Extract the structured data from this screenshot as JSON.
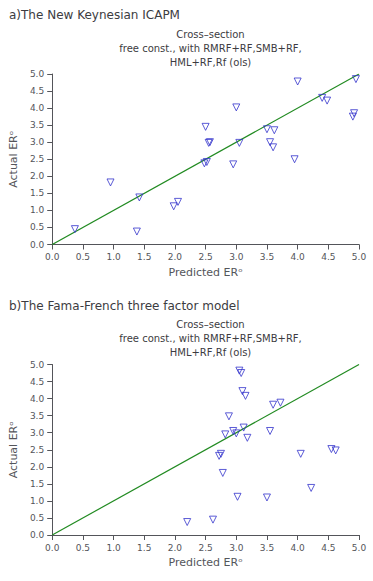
{
  "chart_data": [
    {
      "type": "scatter",
      "annotations": [
        "a)The New Keynesian ICAPM"
      ],
      "title": "Cross–section\nfree const., with RMRF+RF,SMB+RF,\nHML+RF,Rf (ols)",
      "xlabel": "Predicted ERᵒ",
      "ylabel": "Actual ERᵒ",
      "xlim": [
        0,
        5
      ],
      "ylim": [
        0,
        5
      ],
      "xticks": [
        {
          "value": 0,
          "label": "0.0"
        },
        0.5,
        {
          "value": 1,
          "label": "1.0"
        },
        1.5,
        {
          "value": 2,
          "label": "2.0"
        },
        2.5,
        {
          "value": 3,
          "label": "3.0"
        },
        3.5,
        {
          "value": 4,
          "label": "4.0"
        },
        4.5,
        {
          "value": 5,
          "label": "5.0"
        }
      ],
      "yticks": [
        {
          "value": 0,
          "label": "0.0"
        },
        0.5,
        {
          "value": 1,
          "label": "1.0"
        },
        1.5,
        {
          "value": 2,
          "label": "2.0"
        },
        2.5,
        {
          "value": 3,
          "label": "3.0"
        },
        3.5,
        {
          "value": 4,
          "label": "4.0"
        },
        4.5,
        {
          "value": 5,
          "label": "5.0"
        }
      ],
      "grid": false,
      "series": [
        {
          "type": "line",
          "color": "#228B22",
          "line_style": "solid",
          "x": [
            0,
            5
          ],
          "values": [
            0,
            5
          ]
        },
        {
          "type": "scatter",
          "color": "#3333cc",
          "marker": "triangle_down_open",
          "x": [
            0.37,
            0.95,
            1.38,
            1.42,
            1.98,
            2.05,
            2.48,
            2.5,
            2.52,
            2.55,
            2.57,
            2.95,
            3.0,
            3.05,
            3.5,
            3.55,
            3.6,
            3.62,
            3.95,
            4.0,
            4.4,
            4.48,
            4.9,
            4.92,
            4.95
          ],
          "values": [
            0.45,
            1.82,
            0.38,
            1.38,
            1.12,
            1.25,
            2.38,
            3.45,
            2.42,
            2.98,
            3.0,
            2.35,
            4.02,
            2.98,
            3.38,
            3.0,
            2.85,
            3.35,
            2.5,
            4.78,
            4.3,
            4.22,
            3.75,
            3.85,
            4.85
          ]
        }
      ]
    },
    {
      "type": "scatter",
      "annotations": [
        "b)The Fama-French three factor model"
      ],
      "title": "Cross–section\nfree const., with RMRF+RF,SMB+RF,\nHML+RF,Rf (ols)",
      "xlabel": "Predicted ERᵒ",
      "ylabel": "Actual ERᵒ",
      "xlim": [
        0,
        5
      ],
      "ylim": [
        0,
        5
      ],
      "xticks": [
        {
          "value": 0,
          "label": "0.0"
        },
        0.5,
        {
          "value": 1,
          "label": "1.0"
        },
        1.5,
        {
          "value": 2,
          "label": "2.0"
        },
        2.5,
        {
          "value": 3,
          "label": "3.0"
        },
        3.5,
        {
          "value": 4,
          "label": "4.0"
        },
        4.5,
        {
          "value": 5,
          "label": "5.0"
        }
      ],
      "yticks": [
        {
          "value": 0,
          "label": "0.0"
        },
        0.5,
        {
          "value": 1,
          "label": "1.0"
        },
        1.5,
        {
          "value": 2,
          "label": "2.0"
        },
        2.5,
        {
          "value": 3,
          "label": "3.0"
        },
        3.5,
        {
          "value": 4,
          "label": "4.0"
        },
        4.5,
        {
          "value": 5,
          "label": "5.0"
        }
      ],
      "grid": false,
      "series": [
        {
          "type": "line",
          "color": "#228B22",
          "line_style": "solid",
          "x": [
            0,
            5
          ],
          "values": [
            0,
            5
          ]
        },
        {
          "type": "scatter",
          "color": "#3333cc",
          "marker": "triangle_down_open",
          "x": [
            2.2,
            2.62,
            2.72,
            2.75,
            2.78,
            2.82,
            2.88,
            2.95,
            3.0,
            3.02,
            3.05,
            3.08,
            3.1,
            3.12,
            3.15,
            3.18,
            3.5,
            3.55,
            3.6,
            3.72,
            4.05,
            4.22,
            4.55,
            4.62
          ],
          "values": [
            0.38,
            0.45,
            2.32,
            2.38,
            1.82,
            2.95,
            3.48,
            3.05,
            2.98,
            1.12,
            4.82,
            4.75,
            4.22,
            3.15,
            4.08,
            2.85,
            1.1,
            3.05,
            3.82,
            3.88,
            2.38,
            1.38,
            2.52,
            2.48
          ]
        }
      ]
    }
  ]
}
